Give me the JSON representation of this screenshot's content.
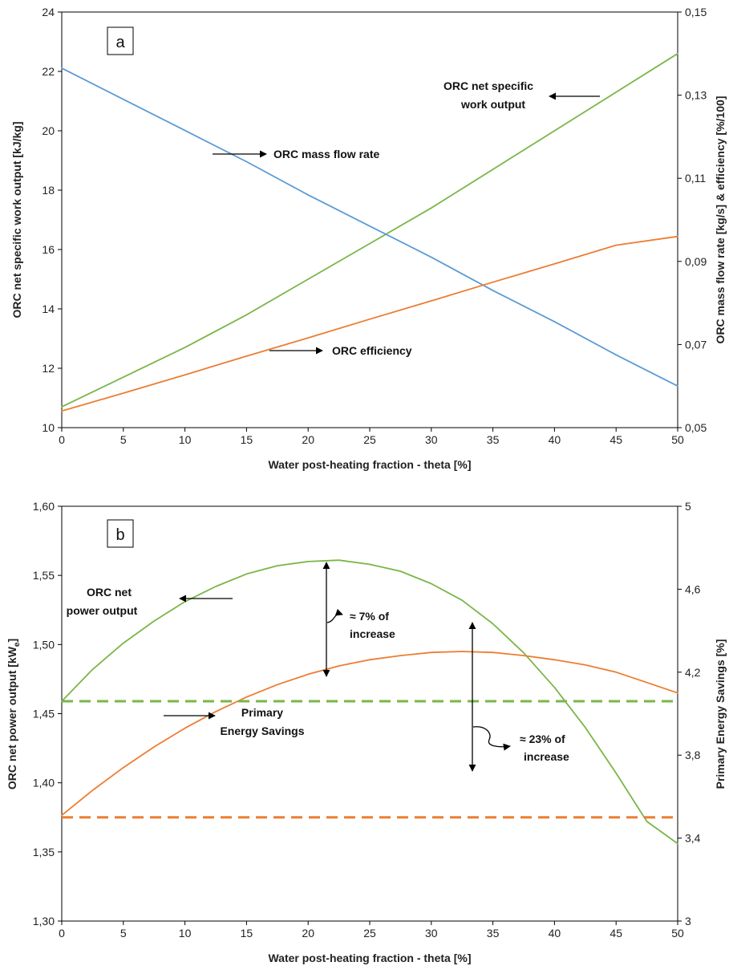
{
  "chart_data": [
    {
      "type": "line",
      "panel_label": "a",
      "xlabel": "Water post-heating fraction - theta [%]",
      "ylabel": "ORC net specific work output [kJ/kg]",
      "y2label": "ORC mass flow rate [kg/s] & efficiency [%/100]",
      "xlim": [
        0,
        50
      ],
      "ylim": [
        10,
        24
      ],
      "y2lim": [
        0.05,
        0.15
      ],
      "x_ticks": [
        0,
        5,
        10,
        15,
        20,
        25,
        30,
        35,
        40,
        45,
        50
      ],
      "y_ticks": [
        10,
        12,
        14,
        16,
        18,
        20,
        22,
        24
      ],
      "y2_ticks": [
        "0,05",
        "0,07",
        "0,09",
        "0,11",
        "0,13",
        "0,15"
      ],
      "x_tick_labels": [
        "0",
        "5",
        "10",
        "15",
        "20",
        "25",
        "30",
        "35",
        "40",
        "45",
        "50"
      ],
      "y_tick_labels": [
        "10",
        "12",
        "14",
        "16",
        "18",
        "20",
        "22",
        "24"
      ],
      "grid": false,
      "colors": {
        "specific_work": "#7ab648",
        "mass_flow": "#5b9bd5",
        "efficiency": "#ed7d31"
      },
      "series": [
        {
          "key": "specific_work",
          "axis": "left",
          "x": [
            0,
            5,
            10,
            15,
            20,
            25,
            30,
            35,
            40,
            45,
            50
          ],
          "values": [
            10.7,
            11.7,
            12.7,
            13.8,
            15.0,
            16.2,
            17.4,
            18.7,
            20.0,
            21.3,
            22.6
          ]
        },
        {
          "key": "mass_flow",
          "axis": "right",
          "x": [
            0,
            5,
            10,
            15,
            20,
            25,
            30,
            35,
            40,
            45,
            50
          ],
          "values": [
            0.1365,
            0.129,
            0.1215,
            0.114,
            0.106,
            0.0985,
            0.091,
            0.083,
            0.0755,
            0.0675,
            0.06
          ]
        },
        {
          "key": "efficiency",
          "axis": "right",
          "x": [
            0,
            5,
            10,
            15,
            20,
            25,
            30,
            35,
            40,
            45,
            50
          ],
          "values": [
            0.054,
            0.0583,
            0.0627,
            0.0672,
            0.0716,
            0.0761,
            0.0805,
            0.085,
            0.0894,
            0.0939,
            0.096
          ]
        }
      ],
      "annotations": [
        {
          "text": "ORC mass flow rate",
          "target": "mass_flow"
        },
        {
          "text_lines": [
            "ORC net specific",
            "work output"
          ],
          "target": "specific_work"
        },
        {
          "text": "ORC efficiency",
          "target": "efficiency"
        }
      ]
    },
    {
      "type": "line",
      "panel_label": "b",
      "xlabel": "Water post-heating fraction - theta [%]",
      "ylabel_parts": {
        "main": "ORC net power output [kW",
        "sub": "e",
        "close": "]"
      },
      "y2label": "Primary Energy Savings [%]",
      "xlim": [
        0,
        50
      ],
      "ylim": [
        1.3,
        1.6
      ],
      "y2lim": [
        3,
        5
      ],
      "x_ticks": [
        0,
        5,
        10,
        15,
        20,
        25,
        30,
        35,
        40,
        45,
        50
      ],
      "x_tick_labels": [
        "0",
        "5",
        "10",
        "15",
        "20",
        "25",
        "30",
        "35",
        "40",
        "45",
        "50"
      ],
      "y_ticks": [
        1.3,
        1.35,
        1.4,
        1.45,
        1.5,
        1.55,
        1.6
      ],
      "y_tick_labels": [
        "1,30",
        "1,35",
        "1,40",
        "1,45",
        "1,50",
        "1,55",
        "1,60"
      ],
      "y2_ticks": [
        3,
        3.4,
        3.8,
        4.2,
        4.6,
        5
      ],
      "y2_tick_labels": [
        "3",
        "3,4",
        "3,8",
        "4,2",
        "4,6",
        "5"
      ],
      "grid": false,
      "colors": {
        "power": "#7ab648",
        "pes": "#ed7d31"
      },
      "series": [
        {
          "key": "power",
          "axis": "left",
          "x": [
            0,
            2.5,
            5,
            7.5,
            10,
            12.5,
            15,
            17.5,
            20,
            22.5,
            25,
            27.5,
            30,
            32.5,
            35,
            37.5,
            40,
            42.5,
            45,
            47.5,
            50
          ],
          "values": [
            1.459,
            1.482,
            1.501,
            1.517,
            1.531,
            1.542,
            1.551,
            1.557,
            1.56,
            1.561,
            1.558,
            1.553,
            1.544,
            1.532,
            1.515,
            1.494,
            1.469,
            1.44,
            1.407,
            1.372,
            1.356
          ]
        },
        {
          "key": "pes",
          "axis": "right",
          "x": [
            0,
            2.5,
            5,
            7.5,
            10,
            12.5,
            15,
            17.5,
            20,
            22.5,
            25,
            27.5,
            30,
            32.5,
            35,
            37.5,
            40,
            42.5,
            45,
            47.5,
            50
          ],
          "values": [
            3.51,
            3.63,
            3.74,
            3.84,
            3.93,
            4.01,
            4.08,
            4.14,
            4.19,
            4.23,
            4.26,
            4.28,
            4.295,
            4.3,
            4.295,
            4.28,
            4.26,
            4.235,
            4.2,
            4.15,
            4.1
          ]
        },
        {
          "key": "power_baseline",
          "axis": "left",
          "dashed": true,
          "x": [
            0,
            50
          ],
          "values": [
            1.459,
            1.459
          ]
        },
        {
          "key": "pes_baseline",
          "axis": "right",
          "dashed": true,
          "x": [
            0,
            50
          ],
          "values": [
            3.5,
            3.5
          ]
        }
      ],
      "annotations": [
        {
          "text_lines": [
            "ORC net",
            "power output"
          ],
          "target": "power"
        },
        {
          "text_lines": [
            "≈ 7% of",
            "increase"
          ],
          "target": "power"
        },
        {
          "text_lines": [
            "Primary",
            "Energy Savings"
          ],
          "target": "pes"
        },
        {
          "text_lines": [
            "≈ 23% of",
            "increase"
          ],
          "target": "pes"
        }
      ]
    }
  ]
}
